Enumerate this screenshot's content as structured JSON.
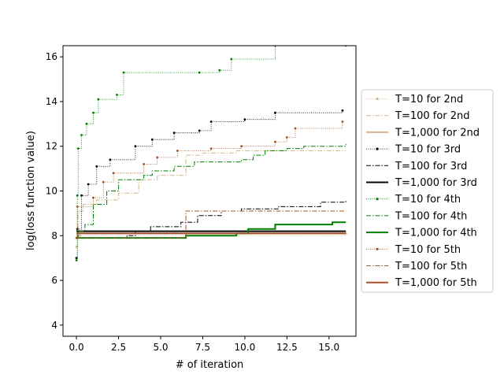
{
  "chart_data": {
    "type": "line",
    "title": "",
    "xlabel": "# of iteration",
    "ylabel": "log(loss function value)",
    "xlim": [
      -0.8,
      16.6
    ],
    "ylim": [
      3.5,
      16.5
    ],
    "xticks": [
      0.0,
      2.5,
      5.0,
      7.5,
      10.0,
      12.5,
      15.0
    ],
    "xtick_labels": [
      "0.0",
      "2.5",
      "5.0",
      "7.5",
      "10.0",
      "12.5",
      "15.0"
    ],
    "yticks": [
      4,
      6,
      8,
      10,
      12,
      14,
      16
    ],
    "ytick_labels": [
      "4",
      "6",
      "8",
      "10",
      "12",
      "14",
      "16"
    ],
    "grid": false,
    "legend_position": "right",
    "series": [
      {
        "name": "T=10 for 2nd",
        "color": "#d2b48c",
        "style": "dotted-marker",
        "points": [
          [
            0,
            7.5
          ],
          [
            0.1,
            7.9
          ],
          [
            0.2,
            8.0
          ],
          [
            16,
            8.1
          ]
        ]
      },
      {
        "name": "T=100 for 2nd",
        "color": "#d2b48c",
        "style": "dashdot",
        "points": [
          [
            0,
            8.0
          ],
          [
            0.1,
            9.1
          ],
          [
            0.4,
            9.4
          ],
          [
            1.2,
            9.6
          ],
          [
            2.5,
            9.9
          ],
          [
            3.7,
            10.5
          ],
          [
            4.8,
            10.7
          ],
          [
            6.5,
            11.6
          ],
          [
            7.5,
            11.7
          ],
          [
            9.5,
            11.8
          ],
          [
            16,
            11.8
          ]
        ]
      },
      {
        "name": "T=1,000 for 2nd",
        "color": "#d2b48c",
        "style": "solid",
        "points": [
          [
            0,
            7.9
          ],
          [
            0.1,
            8.1
          ],
          [
            16,
            8.1
          ]
        ]
      },
      {
        "name": "T=10 for 3rd",
        "color": "#000000",
        "style": "dotted-marker",
        "points": [
          [
            0,
            7.0
          ],
          [
            0.05,
            8.3
          ],
          [
            0.3,
            9.8
          ],
          [
            0.7,
            10.3
          ],
          [
            1.2,
            11.1
          ],
          [
            2.0,
            11.4
          ],
          [
            3.5,
            12.0
          ],
          [
            4.5,
            12.3
          ],
          [
            5.8,
            12.6
          ],
          [
            7.3,
            12.7
          ],
          [
            8.0,
            13.1
          ],
          [
            10,
            13.2
          ],
          [
            11.8,
            13.5
          ],
          [
            15.8,
            13.6
          ]
        ]
      },
      {
        "name": "T=100 for 3rd",
        "color": "#000000",
        "style": "dashdot",
        "points": [
          [
            0,
            7.9
          ],
          [
            3.0,
            8.0
          ],
          [
            3.5,
            8.2
          ],
          [
            4.4,
            8.4
          ],
          [
            6.2,
            8.6
          ],
          [
            7.2,
            8.9
          ],
          [
            8.6,
            9.1
          ],
          [
            9.8,
            9.2
          ],
          [
            12.0,
            9.3
          ],
          [
            14.5,
            9.5
          ],
          [
            16,
            9.6
          ]
        ]
      },
      {
        "name": "T=1,000 for 3rd",
        "color": "#000000",
        "style": "solid",
        "points": [
          [
            0,
            8.2
          ],
          [
            16,
            8.2
          ]
        ]
      },
      {
        "name": "T=10 for 4th",
        "color": "#008000",
        "style": "dotted-marker",
        "points": [
          [
            0,
            6.9
          ],
          [
            0.05,
            9.8
          ],
          [
            0.1,
            11.9
          ],
          [
            0.3,
            12.5
          ],
          [
            0.6,
            13.0
          ],
          [
            1.0,
            13.5
          ],
          [
            1.3,
            14.1
          ],
          [
            2.4,
            14.3
          ],
          [
            2.8,
            15.3
          ],
          [
            7.3,
            15.3
          ],
          [
            8.5,
            15.4
          ],
          [
            9.2,
            15.9
          ],
          [
            11.8,
            16.5
          ],
          [
            16,
            16.5
          ]
        ]
      },
      {
        "name": "T=100 for 4th",
        "color": "#008000",
        "style": "dashdot",
        "points": [
          [
            0,
            7.9
          ],
          [
            0.1,
            8.2
          ],
          [
            0.5,
            8.5
          ],
          [
            1.0,
            9.4
          ],
          [
            1.8,
            10.0
          ],
          [
            2.5,
            10.5
          ],
          [
            4.0,
            10.7
          ],
          [
            4.5,
            10.9
          ],
          [
            5.8,
            11.1
          ],
          [
            7.0,
            11.3
          ],
          [
            9.8,
            11.4
          ],
          [
            10.5,
            11.6
          ],
          [
            11.2,
            11.8
          ],
          [
            12.5,
            11.9
          ],
          [
            13.5,
            12.0
          ],
          [
            16,
            12.1
          ]
        ]
      },
      {
        "name": "T=1,000 for 4th",
        "color": "#008000",
        "style": "solid",
        "points": [
          [
            0,
            7.9
          ],
          [
            6.5,
            8.0
          ],
          [
            9.5,
            8.1
          ],
          [
            10.2,
            8.3
          ],
          [
            11.8,
            8.5
          ],
          [
            15.2,
            8.6
          ],
          [
            16,
            8.6
          ]
        ]
      },
      {
        "name": "T=10 for 5th",
        "color": "#a0522d",
        "style": "dotted-marker",
        "points": [
          [
            0,
            7.9
          ],
          [
            0.05,
            9.3
          ],
          [
            1.0,
            9.7
          ],
          [
            1.6,
            10.4
          ],
          [
            2.2,
            10.8
          ],
          [
            4.0,
            11.2
          ],
          [
            4.8,
            11.5
          ],
          [
            6.0,
            11.8
          ],
          [
            8.0,
            11.9
          ],
          [
            9.8,
            12.0
          ],
          [
            11.8,
            12.2
          ],
          [
            12.5,
            12.4
          ],
          [
            13.0,
            12.8
          ],
          [
            15.8,
            13.1
          ]
        ]
      },
      {
        "name": "T=100 for 5th",
        "color": "#a0522d",
        "style": "dashdot",
        "points": [
          [
            0,
            7.9
          ],
          [
            6.5,
            9.1
          ],
          [
            16,
            9.1
          ]
        ]
      },
      {
        "name": "T=1,000 for 5th",
        "color": "#a0522d",
        "style": "solid",
        "points": [
          [
            0,
            8.1
          ],
          [
            16,
            8.1
          ]
        ]
      }
    ]
  }
}
